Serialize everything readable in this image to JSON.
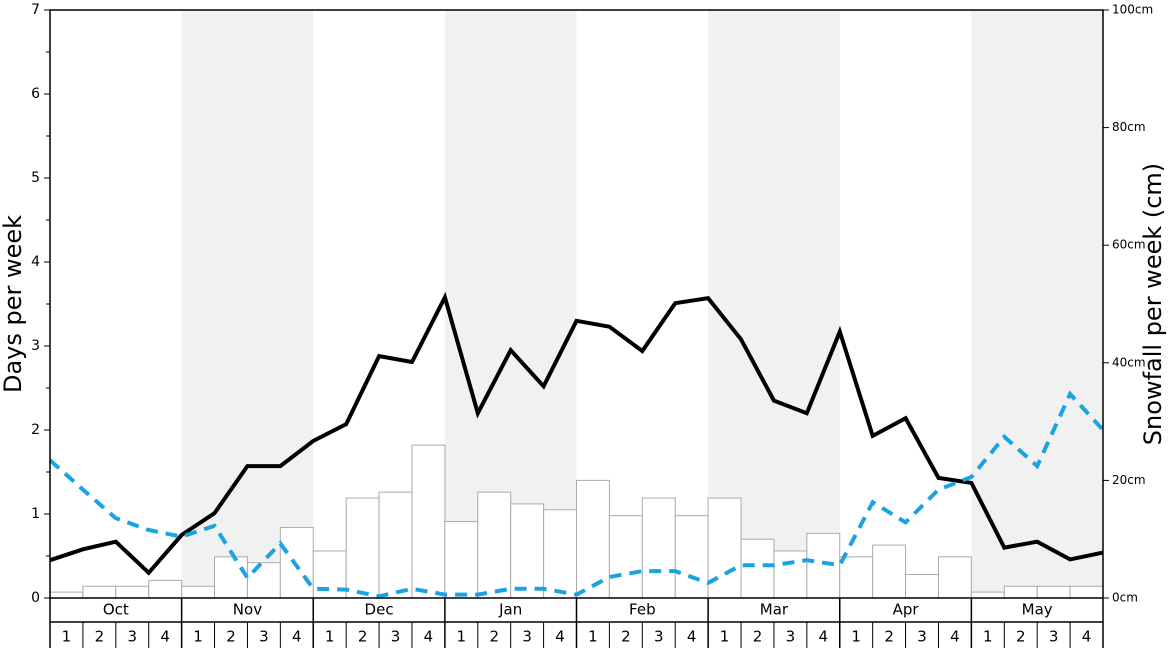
{
  "chart_data": {
    "type": "bar_line",
    "ylabel": "Days per week",
    "y2label": "Snowfall per week (cm)",
    "months": [
      "Oct",
      "Nov",
      "Dec",
      "Jan",
      "Feb",
      "Mar",
      "Apr",
      "May"
    ],
    "weeks": [
      "1",
      "2",
      "3",
      "4"
    ],
    "shaded_months": [
      "Nov",
      "Jan",
      "Mar",
      "May"
    ],
    "ylim": [
      0,
      7
    ],
    "yticks": [
      0,
      1,
      2,
      3,
      4,
      5,
      6,
      7
    ],
    "y2lim": [
      0,
      100
    ],
    "y2ticks": [
      {
        "value": 0,
        "label": "0cm"
      },
      {
        "value": 20,
        "label": "20cm"
      },
      {
        "value": 40,
        "label": "40cm"
      },
      {
        "value": 60,
        "label": "60cm"
      },
      {
        "value": 80,
        "label": "80cm"
      },
      {
        "value": 100,
        "label": "100cm"
      }
    ],
    "bars": {
      "axis": "y2",
      "color": "#ffffff",
      "edge": "#aaaaaa",
      "values": [
        1,
        2,
        2,
        3,
        2,
        7,
        6,
        12,
        8,
        17,
        18,
        26,
        13,
        18,
        16,
        15,
        20,
        14,
        17,
        14,
        17,
        10,
        8,
        11,
        7,
        9,
        4,
        7,
        1,
        2,
        2,
        2
      ]
    },
    "series": [
      {
        "color": "#000000",
        "dash": false,
        "values": [
          0.45,
          0.58,
          0.67,
          0.3,
          0.75,
          1.01,
          1.57,
          1.57,
          1.87,
          2.07,
          2.88,
          2.81,
          3.58,
          2.2,
          2.95,
          2.52,
          3.3,
          3.23,
          2.94,
          3.51,
          3.57,
          3.08,
          2.35,
          2.2,
          3.17,
          1.93,
          2.14,
          1.43,
          1.37,
          0.6,
          0.67,
          0.46,
          0.54
        ]
      },
      {
        "color": "#1aa3e3",
        "dash": true,
        "values": [
          1.64,
          1.29,
          0.95,
          0.81,
          0.73,
          0.86,
          0.24,
          0.65,
          0.11,
          0.1,
          0.02,
          0.11,
          0.04,
          0.04,
          0.11,
          0.11,
          0.04,
          0.25,
          0.32,
          0.32,
          0.18,
          0.39,
          0.39,
          0.45,
          0.39,
          1.14,
          0.9,
          1.29,
          1.44,
          1.92,
          1.57,
          2.43,
          2.0
        ]
      }
    ]
  }
}
